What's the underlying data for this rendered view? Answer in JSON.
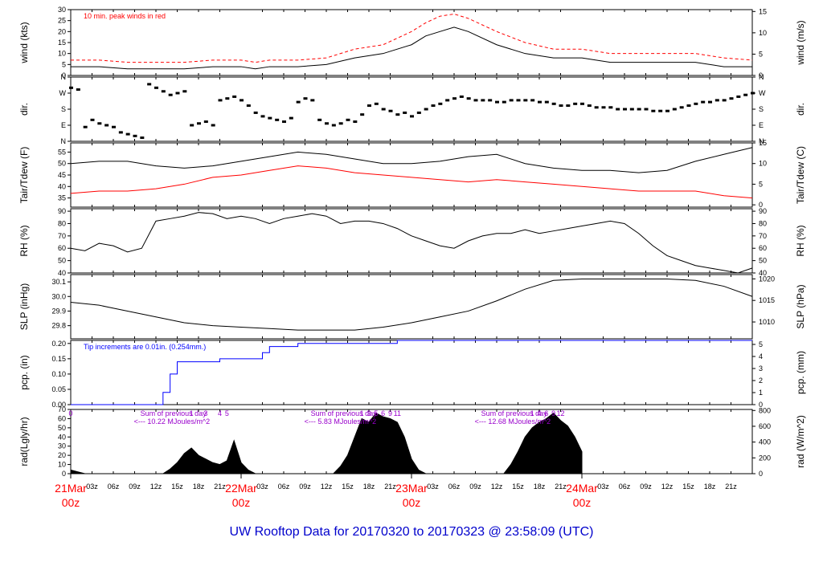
{
  "title": "UW Rooftop Data for 20170320  to  20170323 @ 23:58:09  (UTC)",
  "colors": {
    "frame": "#000000",
    "peak": "#ff0000",
    "dewpoint": "#ff0000",
    "precip": "#0000ff",
    "annotation_purple": "#9900cc",
    "day_label": "#ff0000",
    "title": "#0000cc"
  },
  "x_axis": {
    "range_hours": [
      0,
      96
    ],
    "hour_ticks": [
      {
        "h": 3,
        "label": "03z"
      },
      {
        "h": 6,
        "label": "06z"
      },
      {
        "h": 9,
        "label": "09z"
      },
      {
        "h": 12,
        "label": "12z"
      },
      {
        "h": 15,
        "label": "15z"
      },
      {
        "h": 18,
        "label": "18z"
      },
      {
        "h": 21,
        "label": "21z"
      },
      {
        "h": 27,
        "label": "03z"
      },
      {
        "h": 30,
        "label": "06z"
      },
      {
        "h": 33,
        "label": "09z"
      },
      {
        "h": 36,
        "label": "12z"
      },
      {
        "h": 39,
        "label": "15z"
      },
      {
        "h": 42,
        "label": "18z"
      },
      {
        "h": 45,
        "label": "21z"
      },
      {
        "h": 51,
        "label": "03z"
      },
      {
        "h": 54,
        "label": "06z"
      },
      {
        "h": 57,
        "label": "09z"
      },
      {
        "h": 60,
        "label": "12z"
      },
      {
        "h": 63,
        "label": "15z"
      },
      {
        "h": 66,
        "label": "18z"
      },
      {
        "h": 69,
        "label": "21z"
      },
      {
        "h": 75,
        "label": "03z"
      },
      {
        "h": 78,
        "label": "06z"
      },
      {
        "h": 81,
        "label": "09z"
      },
      {
        "h": 84,
        "label": "12z"
      },
      {
        "h": 87,
        "label": "15z"
      },
      {
        "h": 90,
        "label": "18z"
      },
      {
        "h": 93,
        "label": "21z"
      }
    ],
    "day_labels": [
      {
        "h": 0,
        "date": "21Mar",
        "hour": "00z"
      },
      {
        "h": 24,
        "date": "22Mar",
        "hour": "00z"
      },
      {
        "h": 48,
        "date": "23Mar",
        "hour": "00z"
      },
      {
        "h": 72,
        "date": "24Mar",
        "hour": "00z"
      }
    ]
  },
  "chart_data": [
    {
      "type": "line",
      "id": "wind",
      "ylabel": "wind (kts)",
      "ylabel_right": "wind (m/s)",
      "ylim": [
        0,
        30
      ],
      "ticks_left": [
        0,
        5,
        10,
        15,
        20,
        25,
        30
      ],
      "ticks_right": [
        0,
        5,
        10,
        15
      ],
      "annotation": "10 min. peak winds in red",
      "series": [
        {
          "name": "wind",
          "x": [
            0,
            4,
            8,
            12,
            16,
            20,
            24,
            26,
            28,
            32,
            36,
            40,
            44,
            48,
            50,
            52,
            54,
            56,
            60,
            64,
            68,
            72,
            76,
            80,
            84,
            88,
            92,
            96
          ],
          "y": [
            4,
            4,
            3,
            3,
            3,
            4,
            4,
            3,
            4,
            4,
            5,
            8,
            10,
            14,
            18,
            20,
            22,
            20,
            14,
            10,
            8,
            8,
            6,
            6,
            6,
            6,
            4,
            4
          ]
        },
        {
          "name": "peak",
          "x": [
            0,
            4,
            8,
            12,
            16,
            20,
            24,
            26,
            28,
            32,
            36,
            40,
            44,
            48,
            50,
            52,
            54,
            56,
            60,
            64,
            68,
            72,
            76,
            80,
            84,
            88,
            92,
            96
          ],
          "y": [
            7,
            7,
            6,
            6,
            6,
            7,
            7,
            6,
            7,
            7,
            8,
            12,
            14,
            20,
            24,
            27,
            28,
            26,
            20,
            15,
            12,
            12,
            10,
            10,
            10,
            10,
            8,
            7
          ]
        }
      ]
    },
    {
      "type": "scatter",
      "id": "dir",
      "ylabel": "dir.",
      "ylabel_right": "dir.",
      "ylim": [
        0,
        360
      ],
      "ticks_left": [
        {
          "v": 0,
          "label": "N"
        },
        {
          "v": 90,
          "label": "E"
        },
        {
          "v": 180,
          "label": "S"
        },
        {
          "v": 270,
          "label": "W"
        },
        {
          "v": 360,
          "label": "N"
        }
      ],
      "ticks_right": [
        {
          "v": 0,
          "label": "N"
        },
        {
          "v": 90,
          "label": "E"
        },
        {
          "v": 180,
          "label": "S"
        },
        {
          "v": 270,
          "label": "W"
        },
        {
          "v": 360,
          "label": "N"
        }
      ],
      "x": [
        0,
        1,
        2,
        3,
        4,
        5,
        6,
        7,
        8,
        9,
        10,
        11,
        12,
        13,
        14,
        15,
        16,
        17,
        18,
        19,
        20,
        21,
        22,
        23,
        24,
        25,
        26,
        27,
        28,
        29,
        30,
        31,
        32,
        33,
        34,
        35,
        36,
        37,
        38,
        39,
        40,
        41,
        42,
        43,
        44,
        45,
        46,
        47,
        48,
        49,
        50,
        51,
        52,
        53,
        54,
        55,
        56,
        57,
        58,
        59,
        60,
        61,
        62,
        63,
        64,
        65,
        66,
        67,
        68,
        69,
        70,
        71,
        72,
        73,
        74,
        75,
        76,
        77,
        78,
        79,
        80,
        81,
        82,
        83,
        84,
        85,
        86,
        87,
        88,
        89,
        90,
        91,
        92,
        93,
        94,
        95,
        96
      ],
      "y": [
        300,
        290,
        80,
        120,
        100,
        90,
        80,
        50,
        40,
        30,
        20,
        320,
        300,
        280,
        260,
        270,
        280,
        90,
        100,
        110,
        90,
        230,
        240,
        250,
        230,
        200,
        160,
        140,
        130,
        120,
        110,
        130,
        220,
        240,
        230,
        120,
        100,
        90,
        100,
        120,
        110,
        150,
        200,
        210,
        180,
        170,
        150,
        160,
        140,
        160,
        180,
        200,
        210,
        230,
        240,
        250,
        240,
        230,
        230,
        230,
        220,
        220,
        230,
        230,
        230,
        230,
        220,
        220,
        210,
        200,
        200,
        210,
        210,
        200,
        190,
        190,
        190,
        180,
        180,
        180,
        180,
        180,
        170,
        170,
        170,
        180,
        190,
        200,
        210,
        220,
        220,
        230,
        230,
        240,
        250,
        260,
        270
      ]
    },
    {
      "type": "line",
      "id": "temp",
      "ylabel": "Tair/Tdew (F)",
      "ylabel_right": "Tair/Tdew (C)",
      "ylim": [
        31,
        59
      ],
      "ticks_left": [
        35,
        40,
        45,
        50,
        55
      ],
      "ticks_right": [
        0,
        5,
        10,
        15
      ],
      "series": [
        {
          "name": "Tair",
          "x": [
            0,
            4,
            8,
            12,
            16,
            20,
            24,
            28,
            32,
            36,
            40,
            44,
            48,
            52,
            56,
            60,
            64,
            68,
            72,
            76,
            80,
            84,
            88,
            92,
            96
          ],
          "y": [
            50,
            51,
            51,
            49,
            48,
            49,
            51,
            53,
            55,
            54,
            52,
            50,
            50,
            51,
            53,
            54,
            50,
            48,
            47,
            47,
            46,
            47,
            51,
            54,
            57
          ]
        },
        {
          "name": "Tdew",
          "x": [
            0,
            4,
            8,
            12,
            16,
            20,
            24,
            28,
            32,
            36,
            40,
            44,
            48,
            52,
            56,
            60,
            64,
            68,
            72,
            76,
            80,
            84,
            88,
            92,
            96
          ],
          "y": [
            37,
            38,
            38,
            39,
            41,
            44,
            45,
            47,
            49,
            48,
            46,
            45,
            44,
            43,
            42,
            43,
            42,
            41,
            40,
            39,
            38,
            38,
            38,
            36,
            35
          ]
        }
      ]
    },
    {
      "type": "line",
      "id": "rh",
      "ylabel": "RH (%)",
      "ylabel_right": "RH (%)",
      "ylim": [
        40,
        92
      ],
      "ticks_left": [
        40,
        50,
        60,
        70,
        80,
        90
      ],
      "ticks_right": [
        40,
        50,
        60,
        70,
        80,
        90
      ],
      "series": [
        {
          "name": "RH",
          "x": [
            0,
            2,
            4,
            6,
            8,
            10,
            12,
            14,
            16,
            18,
            20,
            22,
            24,
            26,
            28,
            30,
            32,
            34,
            36,
            38,
            40,
            42,
            44,
            46,
            48,
            50,
            52,
            54,
            56,
            58,
            60,
            62,
            64,
            66,
            68,
            70,
            72,
            74,
            76,
            78,
            80,
            82,
            84,
            86,
            88,
            90,
            92,
            94,
            96
          ],
          "y": [
            60,
            58,
            64,
            62,
            57,
            60,
            82,
            84,
            86,
            89,
            88,
            84,
            86,
            84,
            80,
            84,
            86,
            88,
            86,
            80,
            82,
            82,
            80,
            76,
            70,
            66,
            62,
            60,
            66,
            70,
            72,
            72,
            75,
            72,
            74,
            76,
            78,
            80,
            82,
            80,
            72,
            62,
            54,
            50,
            46,
            44,
            42,
            40,
            44
          ]
        }
      ]
    },
    {
      "type": "line",
      "id": "slp",
      "ylabel": "SLP (inHg)",
      "ylabel_right": "SLP (hPa)",
      "ylim": [
        29.71,
        30.15
      ],
      "ticks_left": [
        29.8,
        29.9,
        30.0,
        30.1
      ],
      "ticks_right": [
        1010,
        1015,
        1020
      ],
      "series": [
        {
          "name": "SLP",
          "x": [
            0,
            4,
            8,
            12,
            16,
            20,
            24,
            28,
            32,
            36,
            40,
            44,
            48,
            52,
            56,
            60,
            64,
            68,
            72,
            76,
            80,
            84,
            88,
            92,
            96
          ],
          "y": [
            29.96,
            29.94,
            29.9,
            29.86,
            29.82,
            29.8,
            29.79,
            29.78,
            29.77,
            29.77,
            29.77,
            29.79,
            29.82,
            29.86,
            29.9,
            29.97,
            30.05,
            30.11,
            30.12,
            30.12,
            30.12,
            30.12,
            30.11,
            30.07,
            30.0
          ]
        }
      ]
    },
    {
      "type": "line",
      "id": "pcp",
      "ylabel": "pcp. (in)",
      "ylabel_right": "pcp. (mm)",
      "ylim": [
        0,
        0.21
      ],
      "ticks_left": [
        0.0,
        0.05,
        0.1,
        0.15,
        0.2
      ],
      "ticks_right": [
        0,
        1,
        2,
        3,
        4,
        5
      ],
      "annotation": "Tip increments are 0.01in. (0.254mm.)",
      "series": [
        {
          "name": "precip",
          "x": [
            0,
            12,
            13,
            14,
            15,
            16,
            20,
            21,
            24,
            26,
            27,
            28,
            30,
            32,
            44,
            46,
            48,
            55,
            56,
            96
          ],
          "y": [
            0.0,
            0.0,
            0.04,
            0.1,
            0.14,
            0.14,
            0.14,
            0.15,
            0.15,
            0.15,
            0.17,
            0.19,
            0.19,
            0.2,
            0.2,
            0.21,
            0.21,
            0.21,
            0.21,
            0.21
          ]
        }
      ]
    },
    {
      "type": "area",
      "id": "rad",
      "ylabel": "rad(Lgly/hr)",
      "ylabel_right": "rad (W/m^2)",
      "ylim": [
        0,
        70
      ],
      "ticks_left": [
        0,
        10,
        20,
        30,
        40,
        50,
        60,
        70
      ],
      "ticks_right": [
        0,
        200,
        400,
        600,
        800
      ],
      "hour_markers": [
        {
          "h": 0,
          "label": "0"
        },
        {
          "h": 17,
          "label": "1"
        },
        {
          "h": 19,
          "label": "3"
        },
        {
          "h": 21,
          "label": "4"
        },
        {
          "h": 22,
          "label": "5"
        },
        {
          "h": 41,
          "label": "1"
        },
        {
          "h": 42,
          "label": "3"
        },
        {
          "h": 43,
          "label": "5"
        },
        {
          "h": 44,
          "label": "6"
        },
        {
          "h": 45,
          "label": "9"
        },
        {
          "h": 46,
          "label": "11"
        },
        {
          "h": 65,
          "label": "1"
        },
        {
          "h": 66,
          "label": "4"
        },
        {
          "h": 67,
          "label": "6"
        },
        {
          "h": 68,
          "label": "9"
        },
        {
          "h": 69,
          "label": "12"
        }
      ],
      "day_sums": [
        {
          "h": 8,
          "line1": "Sum of previous day",
          "line2": "<--- 10.22 MJoules/m^2"
        },
        {
          "h": 32,
          "line1": "Sum of previous day",
          "line2": "<--- 5.83 MJoules/m^2"
        },
        {
          "h": 56,
          "line1": "Sum of previous day",
          "line2": "<--- 12.68 MJoules/m^2"
        }
      ],
      "series": [
        {
          "name": "radiation",
          "x": [
            0,
            1,
            2,
            13,
            14,
            15,
            16,
            17,
            18,
            19,
            20,
            21,
            22,
            23,
            24,
            25,
            26,
            37,
            38,
            39,
            40,
            41,
            42,
            43,
            44,
            45,
            46,
            47,
            48,
            49,
            50,
            61,
            62,
            63,
            64,
            65,
            66,
            67,
            68,
            69,
            70,
            71,
            72
          ],
          "y": [
            4,
            2,
            0,
            0,
            5,
            12,
            22,
            28,
            20,
            16,
            12,
            10,
            14,
            36,
            12,
            4,
            0,
            0,
            8,
            20,
            40,
            60,
            56,
            66,
            62,
            60,
            56,
            40,
            16,
            4,
            0,
            0,
            10,
            24,
            40,
            50,
            56,
            60,
            66,
            58,
            52,
            40,
            24
          ]
        }
      ]
    }
  ]
}
